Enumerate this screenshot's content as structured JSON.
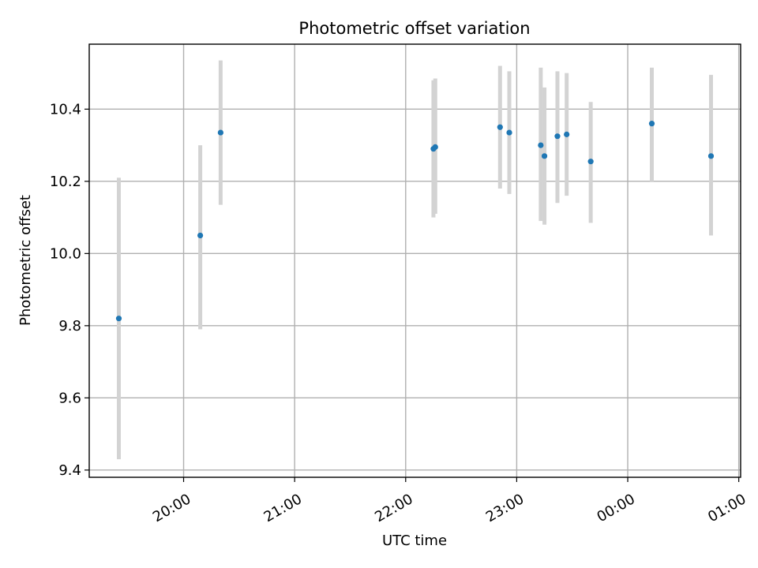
{
  "chart_data": {
    "type": "scatter",
    "title": "Photometric offset variation",
    "xlabel": "UTC time",
    "ylabel": "Photometric offset",
    "x_unit": "UTC time (HH:MM)",
    "xlim": [
      "19:09",
      "01:01"
    ],
    "ylim": [
      9.38,
      10.58
    ],
    "x_ticks": [
      {
        "label": "20:00",
        "time": "20:00"
      },
      {
        "label": "21:00",
        "time": "21:00"
      },
      {
        "label": "22:00",
        "time": "22:00"
      },
      {
        "label": "23:00",
        "time": "23:00"
      },
      {
        "label": "00:00",
        "time": "00:00"
      },
      {
        "label": "01:00",
        "time": "01:00"
      }
    ],
    "y_ticks": [
      9.4,
      9.6,
      9.8,
      10.0,
      10.2,
      10.4
    ],
    "y_tick_labels": [
      "9.4",
      "9.6",
      "9.8",
      "10.0",
      "10.2",
      "10.4"
    ],
    "grid": true,
    "marker_color": "#1f77b4",
    "errorbar_color": "#d3d3d3",
    "points": [
      {
        "x": "19:25",
        "y": 9.82,
        "ymin": 9.43,
        "ymax": 10.21
      },
      {
        "x": "20:09",
        "y": 10.05,
        "ymin": 9.79,
        "ymax": 10.3
      },
      {
        "x": "20:20",
        "y": 10.335,
        "ymin": 10.135,
        "ymax": 10.535
      },
      {
        "x": "22:15",
        "y": 10.29,
        "ymin": 10.1,
        "ymax": 10.48
      },
      {
        "x": "22:16",
        "y": 10.295,
        "ymin": 10.11,
        "ymax": 10.485
      },
      {
        "x": "22:51",
        "y": 10.35,
        "ymin": 10.18,
        "ymax": 10.52
      },
      {
        "x": "22:56",
        "y": 10.335,
        "ymin": 10.165,
        "ymax": 10.505
      },
      {
        "x": "23:13",
        "y": 10.3,
        "ymin": 10.09,
        "ymax": 10.515
      },
      {
        "x": "23:15",
        "y": 10.27,
        "ymin": 10.08,
        "ymax": 10.46
      },
      {
        "x": "23:22",
        "y": 10.325,
        "ymin": 10.14,
        "ymax": 10.505
      },
      {
        "x": "23:27",
        "y": 10.33,
        "ymin": 10.16,
        "ymax": 10.5
      },
      {
        "x": "23:40",
        "y": 10.255,
        "ymin": 10.085,
        "ymax": 10.42
      },
      {
        "x": "00:13",
        "y": 10.36,
        "ymin": 10.2,
        "ymax": 10.515
      },
      {
        "x": "00:45",
        "y": 10.27,
        "ymin": 10.05,
        "ymax": 10.495
      }
    ]
  }
}
